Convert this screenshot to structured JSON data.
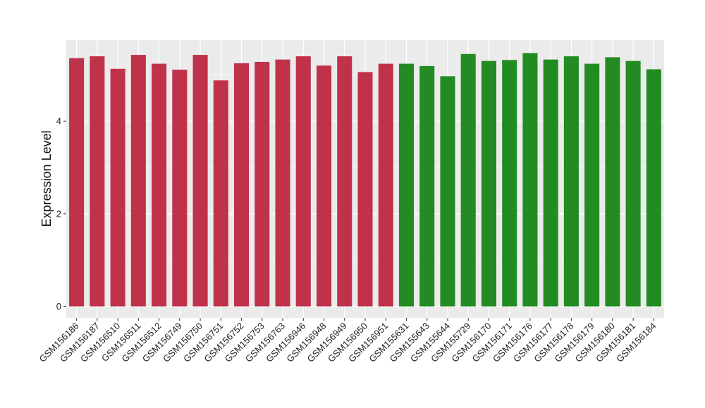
{
  "chart_data": {
    "type": "bar",
    "xlabel": "",
    "ylabel": "Expression Level",
    "ylim": [
      -0.25,
      5.75
    ],
    "yticks": [
      0,
      2,
      4
    ],
    "grid": true,
    "panel_background": "#ebebeb",
    "grid_color": "#ffffff",
    "categories": [
      "GSM156186",
      "GSM156187",
      "GSM156510",
      "GSM156511",
      "GSM156512",
      "GSM156749",
      "GSM156750",
      "GSM156751",
      "GSM156752",
      "GSM156753",
      "GSM156763",
      "GSM156946",
      "GSM156948",
      "GSM156949",
      "GSM156950",
      "GSM156951",
      "GSM155631",
      "GSM155643",
      "GSM155644",
      "GSM155729",
      "GSM156170",
      "GSM156171",
      "GSM156176",
      "GSM156177",
      "GSM156178",
      "GSM156179",
      "GSM156180",
      "GSM156181",
      "GSM156184"
    ],
    "values": [
      5.36,
      5.4,
      5.13,
      5.43,
      5.24,
      5.11,
      5.43,
      4.88,
      5.25,
      5.28,
      5.33,
      5.4,
      5.2,
      5.4,
      5.06,
      5.24,
      5.24,
      5.19,
      4.97,
      5.45,
      5.3,
      5.32,
      5.47,
      5.33,
      5.4,
      5.24,
      5.38,
      5.3,
      5.12
    ],
    "colors": [
      "#c0314a",
      "#c0314a",
      "#c0314a",
      "#c0314a",
      "#c0314a",
      "#c0314a",
      "#c0314a",
      "#c0314a",
      "#c0314a",
      "#c0314a",
      "#c0314a",
      "#c0314a",
      "#c0314a",
      "#c0314a",
      "#c0314a",
      "#c0314a",
      "#228b22",
      "#228b22",
      "#228b22",
      "#228b22",
      "#228b22",
      "#228b22",
      "#228b22",
      "#228b22",
      "#228b22",
      "#228b22",
      "#228b22",
      "#228b22",
      "#228b22"
    ]
  }
}
